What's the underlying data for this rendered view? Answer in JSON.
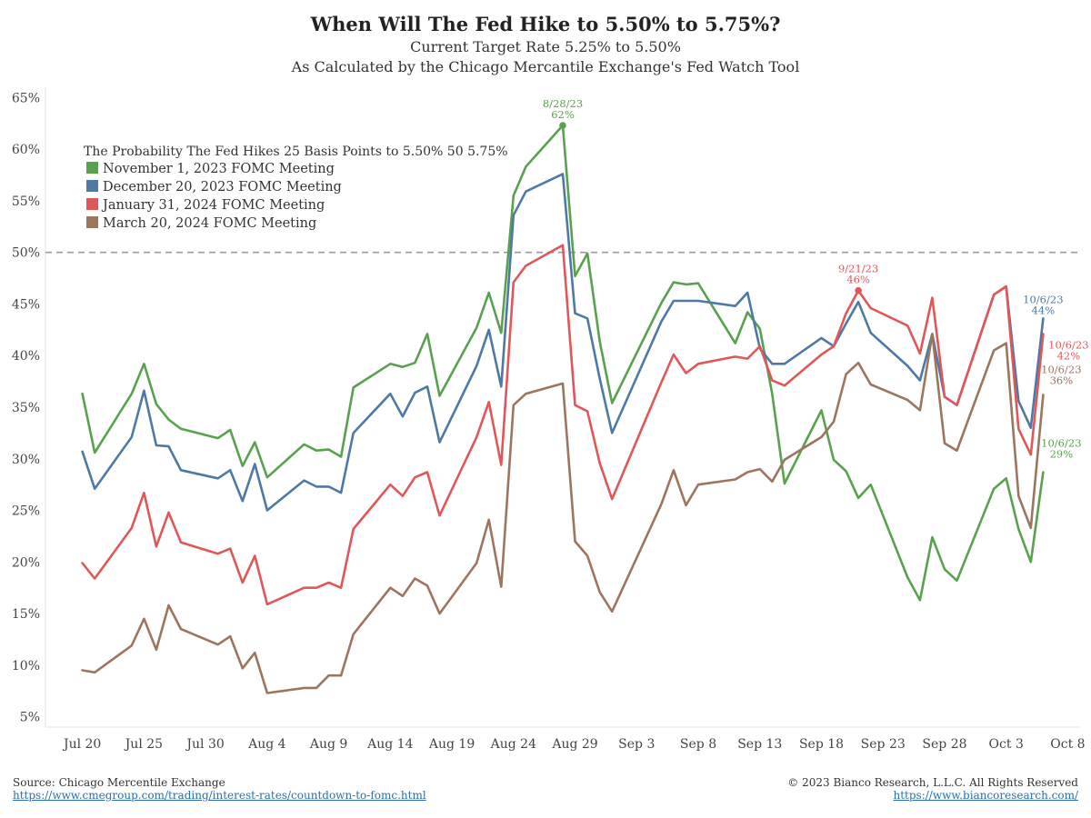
{
  "header": {
    "title": "When Will The Fed Hike to 5.50% to 5.75%?",
    "subtitle_1": "Current Target Rate 5.25% to 5.50%",
    "subtitle_2": "As Calculated by the Chicago Mercantile Exchange's Fed Watch Tool"
  },
  "footer": {
    "source_text": "Source: Chicago Mercentile Exchange",
    "source_url": "https://www.cmegroup.com/trading/interest-rates/countdown-to-fomc.html",
    "copyright": "© 2023 Bianco Research, L.L.C. All Rights Reserved",
    "site_url": "https://www.biancoresearch.com/"
  },
  "chart_data": {
    "type": "line",
    "title": "When Will The Fed Hike to 5.50% to 5.75%?",
    "legend_title": "The Probability The Fed Hikes 25 Basis Points to 5.50% 50 5.75%",
    "legend_position": "top-left",
    "ylim": [
      4,
      66
    ],
    "xlim": [
      "2023-07-17",
      "2023-10-09"
    ],
    "y_ticks": [
      5,
      10,
      15,
      20,
      25,
      30,
      35,
      40,
      45,
      50,
      55,
      60,
      65
    ],
    "y_tick_labels": [
      "5%",
      "10%",
      "15%",
      "20%",
      "25%",
      "30%",
      "35%",
      "40%",
      "45%",
      "50%",
      "55%",
      "60%",
      "65%"
    ],
    "x_ticks": [
      "2023-07-20",
      "2023-07-25",
      "2023-07-30",
      "2023-08-04",
      "2023-08-09",
      "2023-08-14",
      "2023-08-19",
      "2023-08-24",
      "2023-08-29",
      "2023-09-03",
      "2023-09-08",
      "2023-09-13",
      "2023-09-18",
      "2023-09-23",
      "2023-09-28",
      "2023-10-03",
      "2023-10-08"
    ],
    "x_tick_labels": [
      "Jul 20",
      "Jul 25",
      "Jul 30",
      "Aug 4",
      "Aug 9",
      "Aug 14",
      "Aug 19",
      "Aug 24",
      "Aug 29",
      "Sep 3",
      "Sep 8",
      "Sep 13",
      "Sep 18",
      "Sep 23",
      "Sep 28",
      "Oct 3",
      "Oct 8"
    ],
    "reference_line": {
      "y": 50,
      "style": "dashed",
      "color": "#999999"
    },
    "grid": false,
    "x": [
      "2023-07-20",
      "2023-07-21",
      "2023-07-24",
      "2023-07-25",
      "2023-07-26",
      "2023-07-27",
      "2023-07-28",
      "2023-07-31",
      "2023-08-01",
      "2023-08-02",
      "2023-08-03",
      "2023-08-04",
      "2023-08-07",
      "2023-08-08",
      "2023-08-09",
      "2023-08-10",
      "2023-08-11",
      "2023-08-14",
      "2023-08-15",
      "2023-08-16",
      "2023-08-17",
      "2023-08-18",
      "2023-08-21",
      "2023-08-22",
      "2023-08-23",
      "2023-08-24",
      "2023-08-25",
      "2023-08-28",
      "2023-08-29",
      "2023-08-30",
      "2023-08-31",
      "2023-09-01",
      "2023-09-05",
      "2023-09-06",
      "2023-09-07",
      "2023-09-08",
      "2023-09-11",
      "2023-09-12",
      "2023-09-13",
      "2023-09-14",
      "2023-09-15",
      "2023-09-18",
      "2023-09-19",
      "2023-09-20",
      "2023-09-21",
      "2023-09-22",
      "2023-09-25",
      "2023-09-26",
      "2023-09-27",
      "2023-09-28",
      "2023-09-29",
      "2023-10-02",
      "2023-10-03",
      "2023-10-04",
      "2023-10-05",
      "2023-10-06"
    ],
    "series": [
      {
        "name": "November 1, 2023 FOMC Meeting",
        "color": "#59a14f",
        "values": [
          36.3,
          30.6,
          36.3,
          39.2,
          35.3,
          33.8,
          32.9,
          32.0,
          32.8,
          29.3,
          31.6,
          28.2,
          31.4,
          30.8,
          30.9,
          30.2,
          36.9,
          39.2,
          38.9,
          39.3,
          42.1,
          36.1,
          42.7,
          46.1,
          42.2,
          55.5,
          58.3,
          62.3,
          47.7,
          49.9,
          41.4,
          35.4,
          45.1,
          47.1,
          46.9,
          47.0,
          41.2,
          44.2,
          42.6,
          36.3,
          27.6,
          34.7,
          29.9,
          28.8,
          26.2,
          27.5,
          18.5,
          16.3,
          22.4,
          19.3,
          18.2,
          27.1,
          28.1,
          23.2,
          20.0,
          28.7
        ]
      },
      {
        "name": "December 20, 2023 FOMC Meeting",
        "color": "#4e79a7",
        "values": [
          30.7,
          27.1,
          32.1,
          36.6,
          31.3,
          31.2,
          28.9,
          28.1,
          28.9,
          25.9,
          29.5,
          25.0,
          27.9,
          27.3,
          27.3,
          26.7,
          32.5,
          36.3,
          34.1,
          36.4,
          37.0,
          31.6,
          39.0,
          42.5,
          37.0,
          53.6,
          55.9,
          57.6,
          44.1,
          43.6,
          37.8,
          32.5,
          43.3,
          45.3,
          45.3,
          45.3,
          44.8,
          46.1,
          40.7,
          39.2,
          39.2,
          41.7,
          40.9,
          43.1,
          45.2,
          42.2,
          39.0,
          37.6,
          42.1,
          36.0,
          35.2,
          45.9,
          46.7,
          35.6,
          33.0,
          43.6
        ]
      },
      {
        "name": "January 31, 2024 FOMC Meeting",
        "color": "#e15759",
        "values": [
          19.9,
          18.4,
          23.3,
          26.7,
          21.5,
          24.8,
          21.9,
          20.8,
          21.3,
          18.0,
          20.6,
          15.9,
          17.5,
          17.5,
          18.0,
          17.5,
          23.2,
          27.5,
          26.4,
          28.2,
          28.7,
          24.5,
          32.1,
          35.5,
          29.4,
          47.1,
          48.7,
          50.7,
          35.2,
          34.6,
          29.6,
          26.1,
          37.4,
          40.1,
          38.3,
          39.2,
          39.9,
          39.7,
          40.9,
          37.6,
          37.1,
          40.1,
          40.9,
          44.1,
          46.3,
          44.6,
          42.9,
          40.2,
          45.6,
          36.0,
          35.2,
          45.9,
          46.7,
          32.9,
          30.4,
          42.1
        ]
      },
      {
        "name": "March 20, 2024 FOMC Meeting",
        "color": "#9c755f",
        "values": [
          9.5,
          9.3,
          11.9,
          14.5,
          11.5,
          15.8,
          13.5,
          12.0,
          12.8,
          9.7,
          11.2,
          7.3,
          7.8,
          7.8,
          9.0,
          9.0,
          13.0,
          17.5,
          16.7,
          18.4,
          17.7,
          15.0,
          19.9,
          24.1,
          17.6,
          35.2,
          36.3,
          37.3,
          22.0,
          20.6,
          17.1,
          15.2,
          25.6,
          28.9,
          25.5,
          27.5,
          28.0,
          28.7,
          29.0,
          27.8,
          29.9,
          32.1,
          33.6,
          38.2,
          39.3,
          37.2,
          35.7,
          34.7,
          42.1,
          31.5,
          30.8,
          40.5,
          41.2,
          26.4,
          23.3,
          36.2
        ]
      }
    ],
    "annotations": [
      {
        "date_label": "8/28/23",
        "value_label": "62%",
        "x": "2023-08-28",
        "y": 62.3,
        "series": "November 1, 2023 FOMC Meeting",
        "marker": true
      },
      {
        "date_label": "9/21/23",
        "value_label": "46%",
        "x": "2023-09-21",
        "y": 46.3,
        "series": "January 31, 2024 FOMC Meeting",
        "marker": true
      },
      {
        "date_label": "10/6/23",
        "value_label": "44%",
        "x": "2023-10-06",
        "y": 43.6,
        "series": "December 20, 2023 FOMC Meeting",
        "marker": false
      },
      {
        "date_label": "10/6/23",
        "value_label": "42%",
        "x": "2023-10-06",
        "y": 42.1,
        "series": "January 31, 2024 FOMC Meeting",
        "marker": false
      },
      {
        "date_label": "10/6/23",
        "value_label": "36%",
        "x": "2023-10-06",
        "y": 36.2,
        "series": "March 20, 2024 FOMC Meeting",
        "marker": false
      },
      {
        "date_label": "10/6/23",
        "value_label": "29%",
        "x": "2023-10-06",
        "y": 28.7,
        "series": "November 1, 2023 FOMC Meeting",
        "marker": false
      }
    ]
  }
}
